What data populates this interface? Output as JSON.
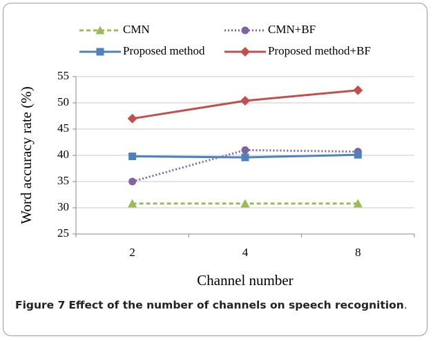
{
  "chart_data": {
    "type": "line",
    "x_label": "Channel number",
    "y_label": "Word accuracy rate (%)",
    "categories": [
      "2",
      "4",
      "8"
    ],
    "series": [
      {
        "name": "CMN",
        "color": "#9bbb59",
        "dash": "dashed",
        "marker": "triangle",
        "values": [
          30.8,
          30.8,
          30.8
        ]
      },
      {
        "name": "CMN+BF",
        "color": "#8064a2",
        "dash": "dotted",
        "marker": "circle",
        "values": [
          35,
          41,
          40.7
        ]
      },
      {
        "name": "Proposed method",
        "color": "#4f81bd",
        "dash": "solid",
        "marker": "square",
        "values": [
          39.8,
          39.6,
          40.1
        ]
      },
      {
        "name": "Proposed method+BF",
        "color": "#c0504d",
        "dash": "solid",
        "marker": "diamond",
        "values": [
          47,
          50.4,
          52.4
        ]
      }
    ],
    "ylim": [
      25,
      55
    ],
    "yticks": [
      25,
      30,
      35,
      40,
      45,
      50,
      55
    ],
    "grid": true
  },
  "caption": {
    "label": "Figure 7",
    "title": "Effect of the number of channels on speech recognition",
    "end": "."
  }
}
